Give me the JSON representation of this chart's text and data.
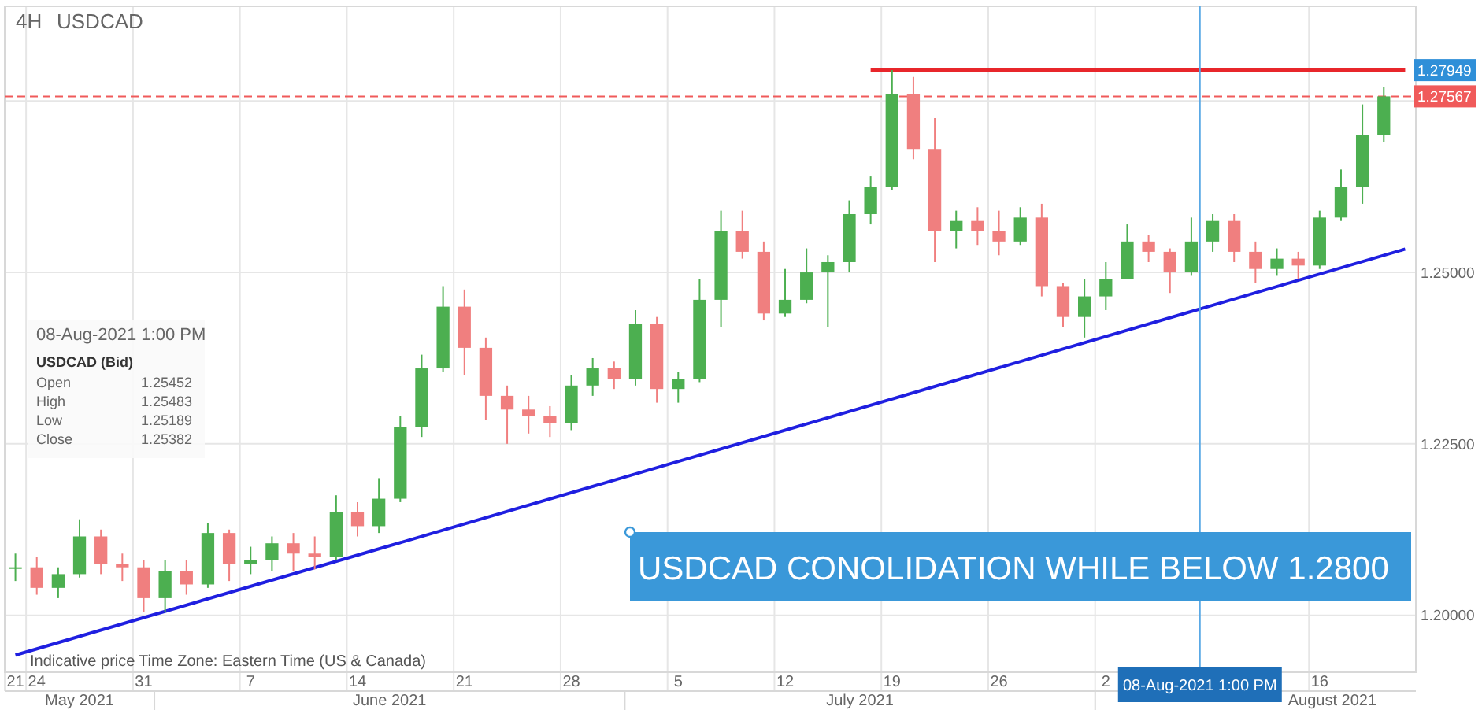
{
  "chart_data": {
    "type": "candlestick",
    "title": "4H",
    "subtitle": "USDCAD",
    "categories": [
      "21",
      "24",
      null,
      null,
      null,
      null,
      "31",
      null,
      null,
      null,
      null,
      "7",
      null,
      null,
      null,
      null,
      "14",
      null,
      null,
      null,
      null,
      "21",
      null,
      null,
      null,
      null,
      "28",
      null,
      null,
      null,
      null,
      "5",
      null,
      null,
      null,
      null,
      "12",
      null,
      null,
      null,
      null,
      "19",
      null,
      null,
      null,
      null,
      "26",
      null,
      null,
      null,
      null,
      "2",
      null,
      null,
      null,
      null,
      null,
      null,
      null,
      null,
      null,
      "16",
      null,
      null,
      null,
      null
    ],
    "ohlc": [
      [
        1.207,
        1.209,
        1.205,
        1.207
      ],
      [
        1.207,
        1.2085,
        1.203,
        1.204
      ],
      [
        1.204,
        1.207,
        1.2025,
        1.206
      ],
      [
        1.206,
        1.214,
        1.2055,
        1.2115
      ],
      [
        1.2115,
        1.2125,
        1.206,
        1.2075
      ],
      [
        1.2075,
        1.209,
        1.205,
        1.207
      ],
      [
        1.207,
        1.208,
        1.2005,
        1.2025
      ],
      [
        1.2025,
        1.208,
        1.2005,
        1.2065
      ],
      [
        1.2065,
        1.208,
        1.203,
        1.2045
      ],
      [
        1.2045,
        1.2135,
        1.204,
        1.212
      ],
      [
        1.212,
        1.2125,
        1.205,
        1.2075
      ],
      [
        1.2075,
        1.21,
        1.206,
        1.208
      ],
      [
        1.208,
        1.2115,
        1.2065,
        1.2105
      ],
      [
        1.2105,
        1.212,
        1.2065,
        1.209
      ],
      [
        1.209,
        1.2115,
        1.2067,
        1.2085
      ],
      [
        1.2085,
        1.2175,
        1.208,
        1.215
      ],
      [
        1.215,
        1.2165,
        1.2115,
        1.213
      ],
      [
        1.213,
        1.22,
        1.212,
        1.217
      ],
      [
        1.217,
        1.229,
        1.2165,
        1.2275
      ],
      [
        1.2275,
        1.238,
        1.226,
        1.236
      ],
      [
        1.236,
        1.248,
        1.2355,
        1.245
      ],
      [
        1.245,
        1.2475,
        1.235,
        1.239
      ],
      [
        1.239,
        1.2405,
        1.2285,
        1.232
      ],
      [
        1.232,
        1.2335,
        1.225,
        1.23
      ],
      [
        1.23,
        1.232,
        1.2265,
        1.229
      ],
      [
        1.229,
        1.2305,
        1.226,
        1.228
      ],
      [
        1.228,
        1.235,
        1.227,
        1.2335
      ],
      [
        1.2335,
        1.2375,
        1.232,
        1.236
      ],
      [
        1.236,
        1.237,
        1.233,
        1.2345
      ],
      [
        1.2345,
        1.2445,
        1.2335,
        1.2425
      ],
      [
        1.2425,
        1.2435,
        1.231,
        1.233
      ],
      [
        1.233,
        1.2355,
        1.231,
        1.2345
      ],
      [
        1.2345,
        1.249,
        1.234,
        1.246
      ],
      [
        1.246,
        1.259,
        1.242,
        1.256
      ],
      [
        1.256,
        1.259,
        1.252,
        1.253
      ],
      [
        1.253,
        1.2545,
        1.243,
        1.244
      ],
      [
        1.244,
        1.2505,
        1.2435,
        1.246
      ],
      [
        1.246,
        1.2535,
        1.2455,
        1.25
      ],
      [
        1.25,
        1.2525,
        1.242,
        1.2515
      ],
      [
        1.2515,
        1.2605,
        1.25,
        1.2585
      ],
      [
        1.2585,
        1.264,
        1.257,
        1.2625
      ],
      [
        1.2625,
        1.2795,
        1.262,
        1.276
      ],
      [
        1.276,
        1.2785,
        1.2665,
        1.268
      ],
      [
        1.268,
        1.2725,
        1.2515,
        1.256
      ],
      [
        1.256,
        1.259,
        1.2535,
        1.2575
      ],
      [
        1.2575,
        1.2595,
        1.254,
        1.256
      ],
      [
        1.256,
        1.259,
        1.2525,
        1.2545
      ],
      [
        1.2545,
        1.2595,
        1.254,
        1.258
      ],
      [
        1.258,
        1.26,
        1.2465,
        1.248
      ],
      [
        1.248,
        1.2485,
        1.242,
        1.2435
      ],
      [
        1.2435,
        1.249,
        1.2405,
        1.2465
      ],
      [
        1.2465,
        1.2515,
        1.2445,
        1.249
      ],
      [
        1.249,
        1.257,
        1.249,
        1.2545
      ],
      [
        1.2545,
        1.2555,
        1.2515,
        1.253
      ],
      [
        1.253,
        1.2535,
        1.247,
        1.25
      ],
      [
        1.25,
        1.258,
        1.2495,
        1.2545
      ],
      [
        1.2545,
        1.2585,
        1.253,
        1.2575
      ],
      [
        1.2575,
        1.2585,
        1.2515,
        1.253
      ],
      [
        1.253,
        1.2545,
        1.2485,
        1.2505
      ],
      [
        1.2505,
        1.2535,
        1.2495,
        1.252
      ],
      [
        1.252,
        1.253,
        1.249,
        1.251
      ],
      [
        1.251,
        1.259,
        1.2505,
        1.258
      ],
      [
        1.258,
        1.265,
        1.2575,
        1.2625
      ],
      [
        1.2625,
        1.2745,
        1.26,
        1.27
      ],
      [
        1.27,
        1.277,
        1.269,
        1.27567
      ],
      null
    ],
    "series": [
      {
        "type": "line",
        "color": "#1f1fe0",
        "values": [
          1.1942,
          null,
          null,
          null,
          null,
          null,
          null,
          null,
          null,
          null,
          null,
          null,
          null,
          null,
          null,
          null,
          null,
          null,
          null,
          null,
          null,
          null,
          null,
          null,
          null,
          null,
          null,
          null,
          null,
          null,
          null,
          null,
          null,
          null,
          null,
          null,
          null,
          null,
          null,
          null,
          null,
          null,
          null,
          null,
          null,
          null,
          null,
          null,
          null,
          null,
          null,
          null,
          null,
          null,
          null,
          null,
          null,
          null,
          null,
          null,
          null,
          null,
          null,
          null,
          null,
          1.2534
        ]
      },
      {
        "type": "line",
        "color": "#e8262b",
        "values": [
          null,
          null,
          null,
          null,
          null,
          null,
          null,
          null,
          null,
          null,
          null,
          null,
          null,
          null,
          null,
          null,
          null,
          null,
          null,
          null,
          null,
          null,
          null,
          null,
          null,
          null,
          null,
          null,
          null,
          null,
          null,
          null,
          null,
          null,
          null,
          null,
          null,
          null,
          null,
          null,
          1.27949,
          null,
          null,
          null,
          null,
          null,
          null,
          null,
          null,
          null,
          null,
          null,
          null,
          null,
          null,
          null,
          null,
          null,
          null,
          null,
          null,
          null,
          null,
          null,
          null,
          1.27949
        ],
        "value_labels": [
          null,
          null,
          null,
          null,
          null,
          null,
          null,
          null,
          null,
          null,
          null,
          null,
          null,
          null,
          null,
          null,
          null,
          null,
          null,
          null,
          null,
          null,
          null,
          null,
          null,
          null,
          null,
          null,
          null,
          null,
          null,
          null,
          null,
          null,
          null,
          null,
          null,
          null,
          null,
          null,
          null,
          null,
          null,
          null,
          null,
          null,
          null,
          null,
          null,
          null,
          null,
          null,
          null,
          null,
          null,
          null,
          null,
          null,
          null,
          null,
          null,
          null,
          null,
          null,
          null,
          "1.27949"
        ]
      }
    ],
    "ylim": [
      1.1917,
      1.2888
    ],
    "yticks": [
      {
        "value": 1.2,
        "label": "1.20000"
      },
      {
        "value": 1.225,
        "label": "1.22500"
      },
      {
        "value": 1.25,
        "label": "1.25000"
      },
      {
        "value": 1.275,
        "label": null
      }
    ],
    "ref_lines": [
      {
        "axis": "y",
        "value": 1.27567,
        "label": "1.27567",
        "color": "#f05a5a",
        "line_style": "dashed"
      }
    ],
    "annotations": [
      "Indicative price",
      "Time Zone: Eastern Time (US & Canada)",
      "USDCAD CONOLIDATION WHILE BELOW 1.2800",
      "08-Aug-2021 1:00 PM",
      "USDCAD (Bid)",
      "Open",
      "1.25452",
      "High",
      "1.25483",
      "Low",
      "1.25189",
      "Close",
      "1.25382",
      "May 2021",
      "June 2021",
      "July 2021",
      "August 2021",
      "08-Aug-2021 1:00 PM"
    ],
    "grid": true
  }
}
